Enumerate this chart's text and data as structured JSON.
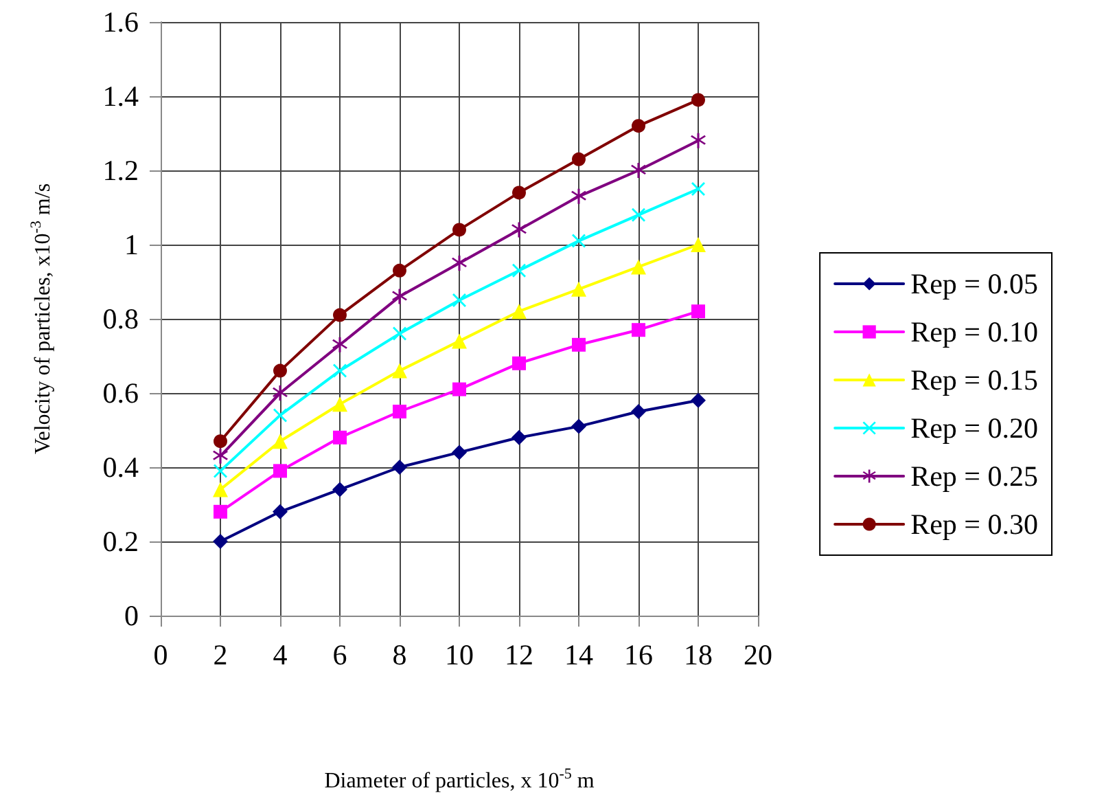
{
  "chart_data": {
    "type": "line",
    "xlabel": "Diameter of particles, x 10$^{-5}$ m",
    "ylabel": "Velocity of particles, x10$^{-3}$ m/s",
    "x": [
      2,
      4,
      6,
      8,
      10,
      12,
      14,
      16,
      18
    ],
    "series": [
      {
        "name": "Rep = 0.05",
        "color": "#000080",
        "marker": "diamond",
        "values": [
          0.2,
          0.28,
          0.34,
          0.4,
          0.44,
          0.48,
          0.51,
          0.55,
          0.58
        ]
      },
      {
        "name": "Rep = 0.10",
        "color": "#ff00ff",
        "marker": "square",
        "values": [
          0.28,
          0.39,
          0.48,
          0.55,
          0.61,
          0.68,
          0.73,
          0.77,
          0.82
        ]
      },
      {
        "name": "Rep = 0.15",
        "color": "#ffff00",
        "marker": "triangle",
        "values": [
          0.34,
          0.47,
          0.57,
          0.66,
          0.74,
          0.82,
          0.88,
          0.94,
          1.0
        ]
      },
      {
        "name": "Rep = 0.20",
        "color": "#00ffff",
        "marker": "cross",
        "values": [
          0.39,
          0.54,
          0.66,
          0.76,
          0.85,
          0.93,
          1.01,
          1.08,
          1.15
        ]
      },
      {
        "name": "Rep = 0.25",
        "color": "#800080",
        "marker": "star",
        "values": [
          0.43,
          0.6,
          0.73,
          0.86,
          0.95,
          1.04,
          1.13,
          1.2,
          1.28
        ]
      },
      {
        "name": "Rep = 0.30",
        "color": "#800000",
        "marker": "circle",
        "values": [
          0.47,
          0.66,
          0.81,
          0.93,
          1.04,
          1.14,
          1.23,
          1.32,
          1.39
        ]
      }
    ],
    "xlim": [
      0,
      20
    ],
    "xticks": [
      0,
      2,
      4,
      6,
      8,
      10,
      12,
      14,
      16,
      18,
      20
    ],
    "ylim": [
      0,
      1.6
    ],
    "yticks": [
      0,
      0.2,
      0.4,
      0.6,
      0.8,
      1,
      1.2,
      1.4,
      1.6
    ],
    "grid": true,
    "legend": "right",
    "line_style": "solid"
  }
}
